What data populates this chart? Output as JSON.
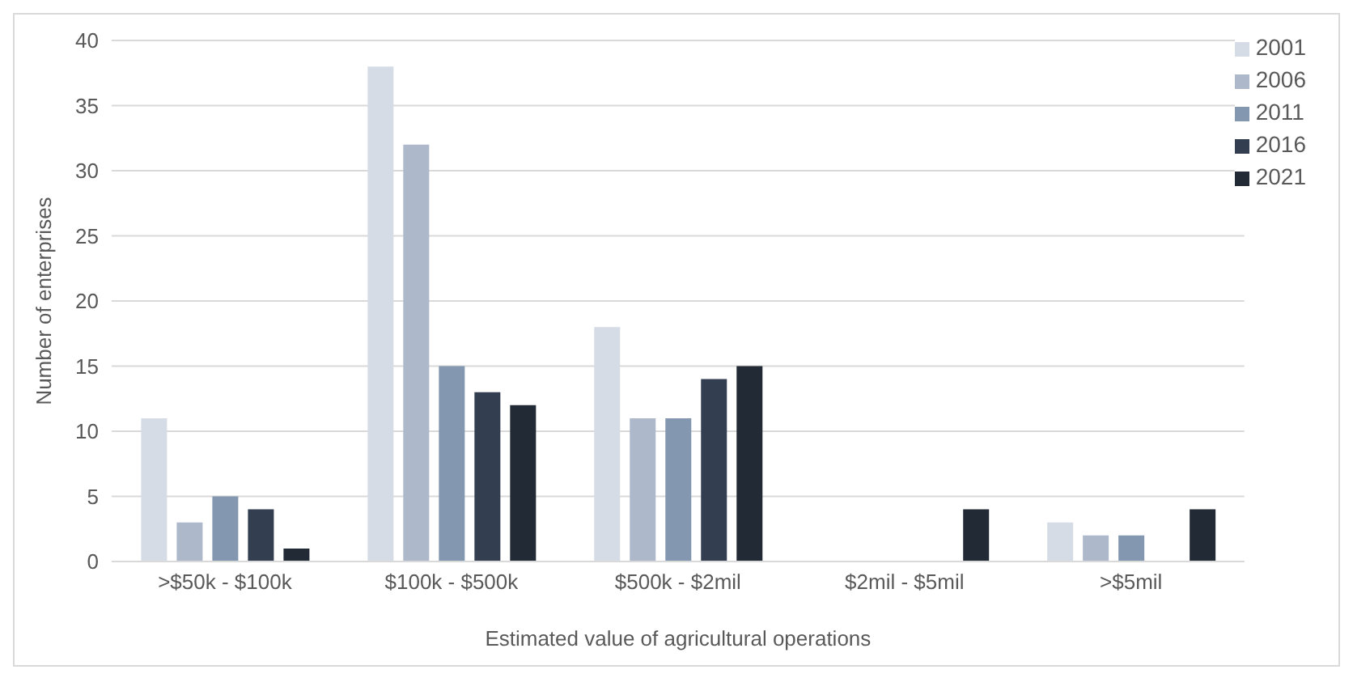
{
  "chart_data": {
    "type": "bar",
    "xlabel": "Estimated value of agricultural operations",
    "ylabel": "Number of enterprises",
    "categories": [
      ">$50k - $100k",
      "$100k - $500k",
      "$500k - $2mil",
      "$2mil - $5mil",
      ">$5mil"
    ],
    "series": [
      {
        "name": "2001",
        "color": "#d5dce6",
        "values": [
          11,
          38,
          18,
          0,
          3
        ]
      },
      {
        "name": "2006",
        "color": "#adb8ca",
        "values": [
          3,
          32,
          11,
          0,
          2
        ]
      },
      {
        "name": "2011",
        "color": "#8497b0",
        "values": [
          5,
          15,
          11,
          0,
          2
        ]
      },
      {
        "name": "2016",
        "color": "#333f50",
        "values": [
          4,
          13,
          14,
          0,
          0
        ]
      },
      {
        "name": "2021",
        "color": "#222a35",
        "values": [
          1,
          12,
          15,
          4,
          4
        ]
      }
    ],
    "ylim": [
      0,
      40
    ],
    "yticks": [
      0,
      5,
      10,
      15,
      20,
      25,
      30,
      35,
      40
    ],
    "grid": "y",
    "legend": "top right"
  }
}
